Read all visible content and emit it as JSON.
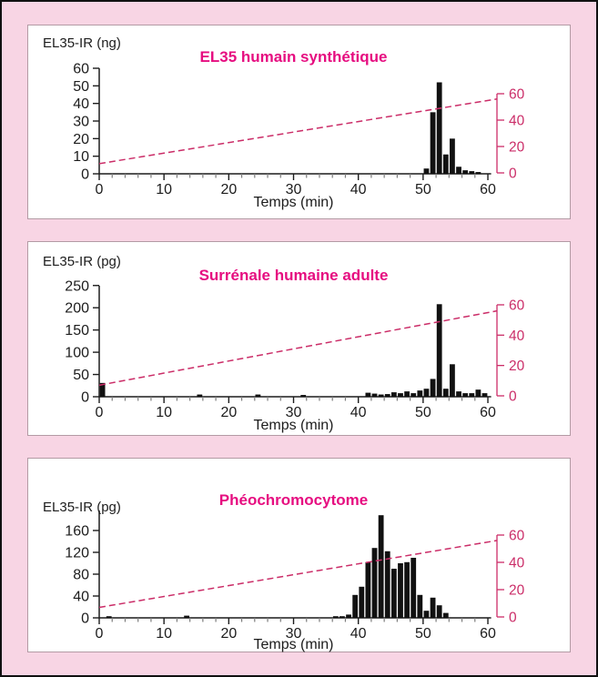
{
  "colors": {
    "page_background": "#f8d5e4",
    "figure_border": "#111111",
    "panel_background": "#ffffff",
    "panel_border": "#b39aa4",
    "accent_pink": "#cb2d68",
    "title_pink": "#e60d80",
    "bar": "#111111",
    "axis": "#1c1c1c",
    "minor_tick": "#7d7d7d",
    "text": "#1c1c1c"
  },
  "chart_data": [
    {
      "type": "bar",
      "title": "EL35 humain synthétique",
      "ylabel": "EL35-IR (ng)",
      "xlabel": "Temps (min)",
      "y_unit": "ng",
      "x_unit": "min",
      "xlim": [
        0,
        62
      ],
      "xticks": [
        0,
        10,
        20,
        30,
        40,
        50,
        60
      ],
      "x_minor_step": 2,
      "ylim": [
        0,
        60
      ],
      "yticks": [
        0,
        10,
        20,
        30,
        40,
        50,
        60
      ],
      "right_axis": {
        "ticks": [
          0,
          20,
          40,
          60
        ],
        "max": 60
      },
      "bars": [
        [
          50,
          3
        ],
        [
          51,
          35
        ],
        [
          52,
          52
        ],
        [
          53,
          11
        ],
        [
          54,
          20
        ],
        [
          55,
          4
        ],
        [
          56,
          2
        ],
        [
          57,
          1.5
        ],
        [
          58,
          1
        ]
      ],
      "gradient_line": {
        "style": "dashed",
        "x": [
          0,
          61.4
        ],
        "y_right": [
          7,
          56
        ]
      }
    },
    {
      "type": "bar",
      "title": "Surrénale humaine adulte",
      "ylabel": "EL35-IR (pg)",
      "xlabel": "Temps (min)",
      "y_unit": "pg",
      "x_unit": "min",
      "xlim": [
        0,
        62
      ],
      "xticks": [
        0,
        10,
        20,
        30,
        40,
        50,
        60
      ],
      "x_minor_step": 2,
      "ylim": [
        0,
        250
      ],
      "yticks": [
        0,
        50,
        100,
        150,
        200,
        250
      ],
      "right_axis": {
        "ticks": [
          0,
          20,
          40,
          60
        ],
        "max": 60
      },
      "bars": [
        [
          0,
          31
        ],
        [
          15,
          5
        ],
        [
          24,
          5
        ],
        [
          31,
          4
        ],
        [
          41,
          9
        ],
        [
          42,
          7
        ],
        [
          43,
          5
        ],
        [
          44,
          6
        ],
        [
          45,
          10
        ],
        [
          46,
          8
        ],
        [
          47,
          12
        ],
        [
          48,
          8
        ],
        [
          49,
          14
        ],
        [
          50,
          18
        ],
        [
          51,
          40
        ],
        [
          52,
          208
        ],
        [
          53,
          18
        ],
        [
          54,
          73
        ],
        [
          55,
          12
        ],
        [
          56,
          8
        ],
        [
          57,
          8
        ],
        [
          58,
          16
        ],
        [
          59,
          8
        ]
      ],
      "gradient_line": {
        "style": "dashed",
        "x": [
          0,
          61.4
        ],
        "y_right": [
          7,
          56
        ]
      }
    },
    {
      "type": "bar",
      "title": "Phéochromocytome",
      "ylabel": "EL35-IR (pg)",
      "xlabel": "Temps (min)",
      "y_unit": "pg",
      "x_unit": "min",
      "xlim": [
        0,
        62
      ],
      "xticks": [
        0,
        10,
        20,
        30,
        40,
        50,
        60
      ],
      "x_minor_step": 2,
      "ylim": [
        0,
        160
      ],
      "yticks": [
        0,
        40,
        80,
        120,
        160
      ],
      "right_axis": {
        "ticks": [
          0,
          20,
          40,
          60
        ],
        "max": 60
      },
      "bars": [
        [
          1,
          3
        ],
        [
          13,
          4
        ],
        [
          36,
          3
        ],
        [
          37,
          3
        ],
        [
          38,
          6
        ],
        [
          39,
          42
        ],
        [
          40,
          57
        ],
        [
          41,
          102
        ],
        [
          42,
          128
        ],
        [
          43,
          188
        ],
        [
          44,
          122
        ],
        [
          45,
          90
        ],
        [
          46,
          100
        ],
        [
          47,
          102
        ],
        [
          48,
          110
        ],
        [
          49,
          42
        ],
        [
          50,
          13
        ],
        [
          51,
          37
        ],
        [
          52,
          23
        ],
        [
          53,
          9
        ]
      ],
      "gradient_line": {
        "style": "dashed",
        "x": [
          0,
          61.4
        ],
        "y_right": [
          7,
          56
        ]
      }
    }
  ]
}
